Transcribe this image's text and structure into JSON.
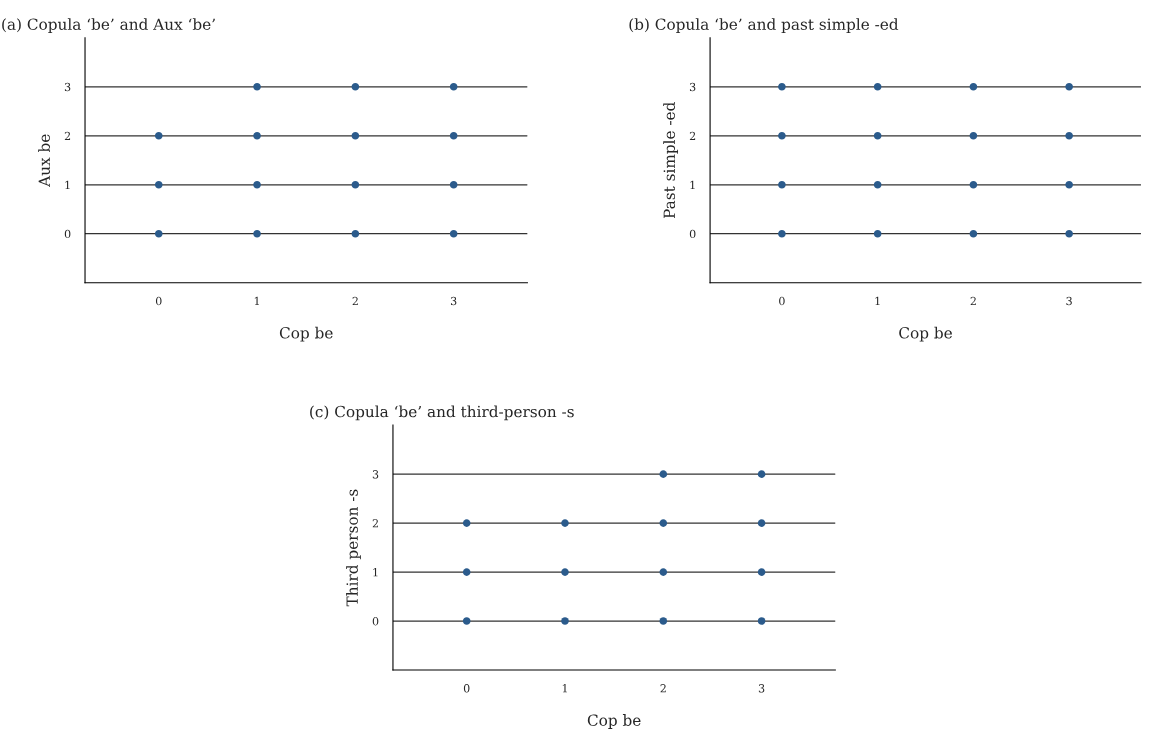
{
  "chart_data": [
    {
      "type": "scatter",
      "title": "(a) Copula ‘be’ and Aux ‘be’",
      "xlabel": "Cop be",
      "ylabel": "Aux be",
      "xlim": [
        -0.75,
        3.75
      ],
      "ylim": [
        -1,
        4
      ],
      "xticks": [
        0,
        1,
        2,
        3
      ],
      "yticks": [
        0,
        1,
        2,
        3
      ],
      "grid": "y",
      "marker": "circle",
      "series": [
        {
          "color": "#2b5b8c",
          "x": [
            0,
            1,
            2,
            3,
            0,
            1,
            2,
            3,
            0,
            1,
            2,
            3,
            1,
            2,
            3
          ],
          "values": [
            0,
            0,
            0,
            0,
            1,
            1,
            1,
            1,
            2,
            2,
            2,
            2,
            3,
            3,
            3
          ]
        }
      ]
    },
    {
      "type": "scatter",
      "title": "(b) Copula ‘be’ and past simple -ed",
      "xlabel": "Cop be",
      "ylabel": "Past simple -ed",
      "xlim": [
        -0.75,
        3.75
      ],
      "ylim": [
        -1,
        4
      ],
      "xticks": [
        0,
        1,
        2,
        3
      ],
      "yticks": [
        0,
        1,
        2,
        3
      ],
      "grid": "y",
      "marker": "circle",
      "series": [
        {
          "color": "#2b5b8c",
          "x": [
            0,
            1,
            2,
            3,
            0,
            1,
            2,
            3,
            0,
            1,
            2,
            3,
            0,
            1,
            2,
            3
          ],
          "values": [
            0,
            0,
            0,
            0,
            1,
            1,
            1,
            1,
            2,
            2,
            2,
            2,
            3,
            3,
            3,
            3
          ]
        }
      ]
    },
    {
      "type": "scatter",
      "title": "(c) Copula ‘be’ and third-person -s",
      "xlabel": "Cop be",
      "ylabel": "Third person -s",
      "xlim": [
        -0.75,
        3.75
      ],
      "ylim": [
        -1,
        4
      ],
      "xticks": [
        0,
        1,
        2,
        3
      ],
      "yticks": [
        0,
        1,
        2,
        3
      ],
      "grid": "y",
      "marker": "circle",
      "series": [
        {
          "color": "#2b5b8c",
          "x": [
            0,
            1,
            2,
            3,
            0,
            1,
            2,
            3,
            0,
            1,
            2,
            3,
            2,
            3
          ],
          "values": [
            0,
            0,
            0,
            0,
            1,
            1,
            1,
            1,
            2,
            2,
            2,
            2,
            3,
            3
          ]
        }
      ]
    }
  ]
}
